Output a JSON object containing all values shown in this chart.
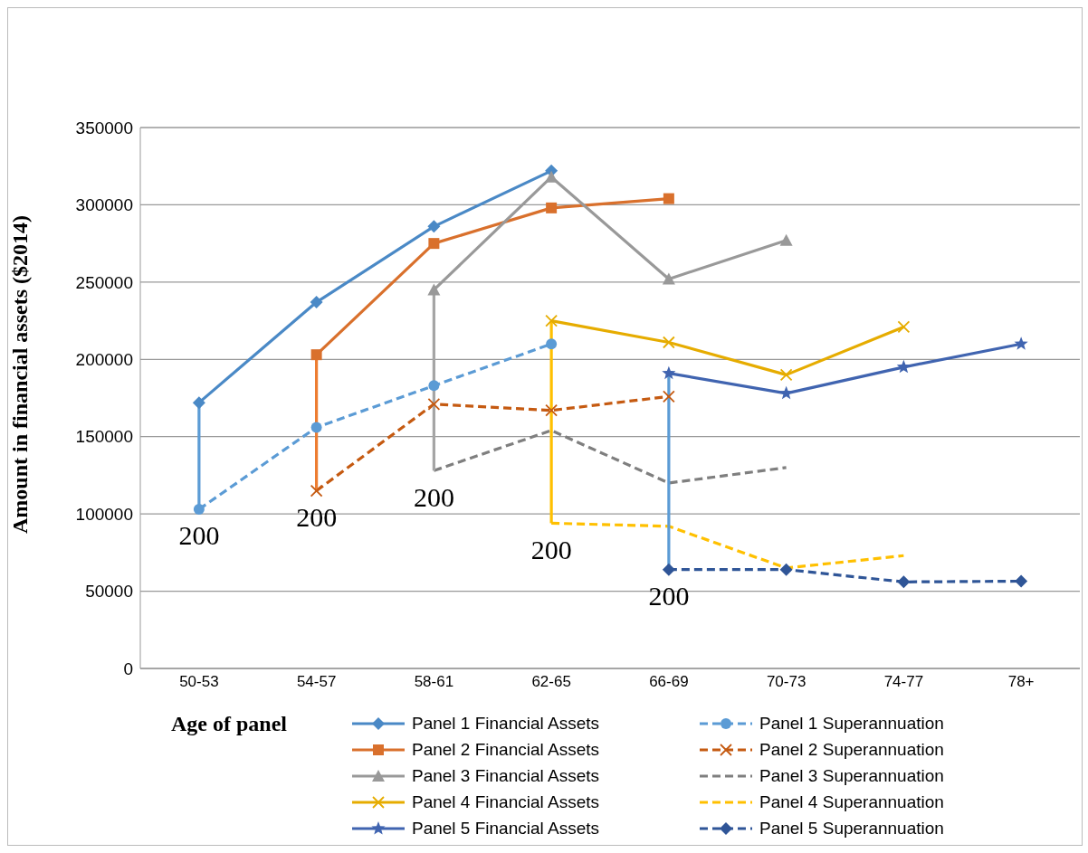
{
  "chart_data": {
    "type": "line",
    "ylabel": "Amount in financial assets ($2014)",
    "xlabel": "Age of panel",
    "categories": [
      "50-53",
      "54-57",
      "58-61",
      "62-65",
      "66-69",
      "70-73",
      "74-77",
      "78+"
    ],
    "ylim": [
      0,
      350000
    ],
    "yticks": [
      0,
      50000,
      100000,
      150000,
      200000,
      250000,
      300000,
      350000
    ],
    "grid": "y",
    "legend": "bottom",
    "series": [
      {
        "name": "Panel 1 Financial Assets",
        "color": "#4a89c6",
        "marker": "diamond",
        "line_style": "solid",
        "values": [
          172000,
          237000,
          286000,
          322000,
          null,
          null,
          null,
          null
        ]
      },
      {
        "name": "Panel 1 Superannuation",
        "color": "#5b9bd5",
        "marker": "circle",
        "line_style": "dashed",
        "values": [
          103000,
          156000,
          183000,
          210000,
          null,
          null,
          null,
          null
        ]
      },
      {
        "name": "Panel 2 Financial Assets",
        "color": "#d9702c",
        "marker": "square",
        "line_style": "solid",
        "values": [
          null,
          203000,
          275000,
          298000,
          304000,
          null,
          null,
          null
        ]
      },
      {
        "name": "Panel 2 Superannuation",
        "color": "#c55a11",
        "marker": "cross",
        "line_style": "dashed",
        "values": [
          null,
          115000,
          171000,
          167000,
          176000,
          null,
          null,
          null
        ]
      },
      {
        "name": "Panel 3 Financial Assets",
        "color": "#999999",
        "marker": "triangle",
        "line_style": "solid",
        "values": [
          null,
          null,
          245000,
          318000,
          252000,
          277000,
          null,
          null
        ]
      },
      {
        "name": "Panel 3 Superannuation",
        "color": "#7f7f7f",
        "marker": "none",
        "line_style": "dashed",
        "values": [
          null,
          null,
          128000,
          154000,
          120000,
          130000,
          null,
          null
        ]
      },
      {
        "name": "Panel 4 Financial Assets",
        "color": "#e6ac00",
        "marker": "cross",
        "line_style": "solid",
        "values": [
          null,
          null,
          null,
          225000,
          211000,
          190000,
          221000,
          null
        ]
      },
      {
        "name": "Panel 4 Superannuation",
        "color": "#ffc000",
        "marker": "none",
        "line_style": "dashed",
        "values": [
          null,
          null,
          null,
          94000,
          92000,
          65000,
          73000,
          null
        ]
      },
      {
        "name": "Panel 5 Financial Assets",
        "color": "#4064b0",
        "marker": "star",
        "line_style": "solid",
        "values": [
          null,
          null,
          null,
          null,
          191000,
          178000,
          195000,
          210000
        ]
      },
      {
        "name": "Panel 5 Superannuation",
        "color": "#2f5597",
        "marker": "diamond",
        "line_style": "dashed",
        "values": [
          null,
          null,
          null,
          null,
          64000,
          64000,
          56000,
          56500
        ]
      },
      {
        "color": "#5b9bd5",
        "marker": "none",
        "line_style": "solid",
        "x": [
          "50-53",
          "50-53"
        ],
        "values": [
          103000,
          172000
        ]
      },
      {
        "color": "#ed7d31",
        "marker": "none",
        "line_style": "solid",
        "x": [
          "54-57",
          "54-57"
        ],
        "values": [
          115000,
          203000
        ]
      },
      {
        "color": "#a5a5a5",
        "marker": "none",
        "line_style": "solid",
        "x": [
          "58-61",
          "58-61"
        ],
        "values": [
          128000,
          245000
        ]
      },
      {
        "color": "#ffc000",
        "marker": "none",
        "line_style": "solid",
        "x": [
          "62-65",
          "62-65"
        ],
        "values": [
          94000,
          225000
        ]
      },
      {
        "color": "#5b9bd5",
        "marker": "none",
        "line_style": "solid",
        "x": [
          "66-69",
          "66-69"
        ],
        "values": [
          64000,
          191000
        ]
      }
    ],
    "annotations": [
      "200",
      "200",
      "200",
      "200",
      "200"
    ]
  }
}
